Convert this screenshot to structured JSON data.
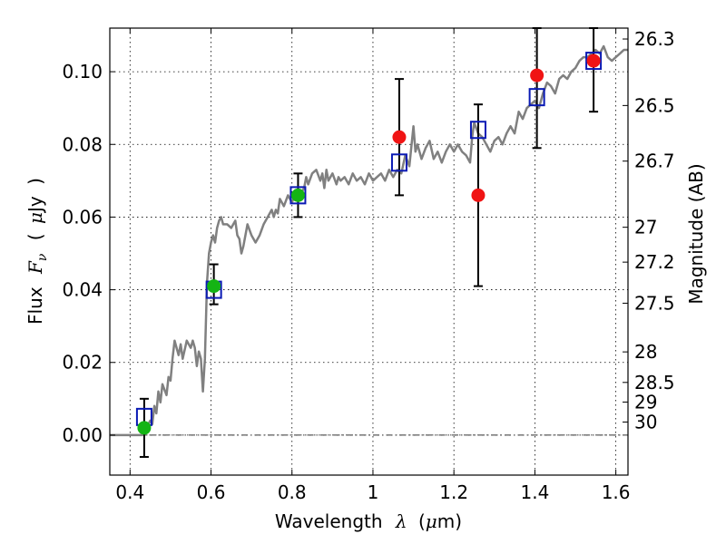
{
  "chart_data": {
    "type": "scatter",
    "xlabel": "Wavelength",
    "xlabel_symbol": "λ",
    "xlabel_unit_open": "(",
    "xlabel_unit_mu": "μ",
    "xlabel_unit_rest": "m)",
    "ylabel": "Flux",
    "ylabel_symbol_F": "F",
    "ylabel_symbol_sub": "ν",
    "ylabel_open": "(",
    "ylabel_mu": "μ",
    "ylabel_unit": "Jy",
    "ylabel_close": ")",
    "y2label": "Magnitude (AB)",
    "xlim": [
      0.35,
      1.63
    ],
    "ylim": [
      -0.011,
      0.112
    ],
    "grid": true,
    "colors": {
      "spectrum": "#808080",
      "model_box": "#0a1ab4",
      "green": "#14b414",
      "red": "#f01414",
      "errorbar": "#000000",
      "zeroline": "#333333"
    },
    "xticks": [
      {
        "v": 0.4,
        "label": "0.4"
      },
      {
        "v": 0.6,
        "label": "0.6"
      },
      {
        "v": 0.8,
        "label": "0.8"
      },
      {
        "v": 1.0,
        "label": "1"
      },
      {
        "v": 1.2,
        "label": "1.2"
      },
      {
        "v": 1.4,
        "label": "1.4"
      },
      {
        "v": 1.6,
        "label": "1.6"
      }
    ],
    "yticks": [
      {
        "v": 0.0,
        "label": "0.00"
      },
      {
        "v": 0.02,
        "label": "0.02"
      },
      {
        "v": 0.04,
        "label": "0.04"
      },
      {
        "v": 0.06,
        "label": "0.06"
      },
      {
        "v": 0.08,
        "label": "0.08"
      },
      {
        "v": 0.1,
        "label": "0.10"
      }
    ],
    "mag_ticks": [
      {
        "label": "26.3",
        "flux": 0.109
      },
      {
        "label": "26.5",
        "flux": 0.0907
      },
      {
        "label": "26.7",
        "flux": 0.0754
      },
      {
        "label": "27",
        "flux": 0.0572
      },
      {
        "label": "27.2",
        "flux": 0.0476
      },
      {
        "label": "27.5",
        "flux": 0.0363
      },
      {
        "label": "28",
        "flux": 0.0229
      },
      {
        "label": "28.5",
        "flux": 0.0145
      },
      {
        "label": "29",
        "flux": 0.0091
      },
      {
        "label": "30",
        "flux": 0.0036
      }
    ],
    "model_boxes": [
      {
        "x": 0.435,
        "y": 0.005
      },
      {
        "x": 0.607,
        "y": 0.04
      },
      {
        "x": 0.815,
        "y": 0.066
      },
      {
        "x": 1.065,
        "y": 0.075
      },
      {
        "x": 1.26,
        "y": 0.084
      },
      {
        "x": 1.405,
        "y": 0.093
      },
      {
        "x": 1.545,
        "y": 0.103
      }
    ],
    "photometry": [
      {
        "x": 0.435,
        "y": 0.002,
        "lo": -0.006,
        "hi": 0.01,
        "band": "green"
      },
      {
        "x": 0.607,
        "y": 0.041,
        "lo": 0.036,
        "hi": 0.047,
        "band": "green"
      },
      {
        "x": 0.815,
        "y": 0.066,
        "lo": 0.06,
        "hi": 0.072,
        "band": "green"
      },
      {
        "x": 1.065,
        "y": 0.082,
        "lo": 0.066,
        "hi": 0.098,
        "band": "red"
      },
      {
        "x": 1.26,
        "y": 0.066,
        "lo": 0.041,
        "hi": 0.091,
        "band": "red"
      },
      {
        "x": 1.405,
        "y": 0.099,
        "lo": 0.079,
        "hi": 0.112,
        "band": "red"
      },
      {
        "x": 1.545,
        "y": 0.103,
        "lo": 0.089,
        "hi": 0.112,
        "band": "red"
      }
    ],
    "spectrum": [
      [
        0.35,
        0.0
      ],
      [
        0.43,
        0.0
      ],
      [
        0.44,
        0.002
      ],
      [
        0.45,
        0.004
      ],
      [
        0.455,
        0.003
      ],
      [
        0.46,
        0.008
      ],
      [
        0.465,
        0.006
      ],
      [
        0.47,
        0.012
      ],
      [
        0.475,
        0.009
      ],
      [
        0.48,
        0.014
      ],
      [
        0.49,
        0.011
      ],
      [
        0.495,
        0.016
      ],
      [
        0.5,
        0.015
      ],
      [
        0.505,
        0.021
      ],
      [
        0.51,
        0.026
      ],
      [
        0.52,
        0.022
      ],
      [
        0.525,
        0.025
      ],
      [
        0.53,
        0.021
      ],
      [
        0.54,
        0.026
      ],
      [
        0.55,
        0.024
      ],
      [
        0.555,
        0.026
      ],
      [
        0.56,
        0.024
      ],
      [
        0.565,
        0.019
      ],
      [
        0.57,
        0.023
      ],
      [
        0.575,
        0.021
      ],
      [
        0.58,
        0.012
      ],
      [
        0.585,
        0.021
      ],
      [
        0.59,
        0.042
      ],
      [
        0.595,
        0.05
      ],
      [
        0.6,
        0.053
      ],
      [
        0.605,
        0.055
      ],
      [
        0.61,
        0.053
      ],
      [
        0.615,
        0.057
      ],
      [
        0.62,
        0.059
      ],
      [
        0.625,
        0.06
      ],
      [
        0.63,
        0.058
      ],
      [
        0.64,
        0.058
      ],
      [
        0.65,
        0.057
      ],
      [
        0.66,
        0.059
      ],
      [
        0.665,
        0.055
      ],
      [
        0.67,
        0.054
      ],
      [
        0.675,
        0.05
      ],
      [
        0.68,
        0.052
      ],
      [
        0.69,
        0.058
      ],
      [
        0.7,
        0.055
      ],
      [
        0.71,
        0.053
      ],
      [
        0.72,
        0.055
      ],
      [
        0.73,
        0.058
      ],
      [
        0.74,
        0.06
      ],
      [
        0.75,
        0.062
      ],
      [
        0.755,
        0.06
      ],
      [
        0.76,
        0.062
      ],
      [
        0.765,
        0.061
      ],
      [
        0.77,
        0.065
      ],
      [
        0.78,
        0.063
      ],
      [
        0.79,
        0.066
      ],
      [
        0.8,
        0.064
      ],
      [
        0.81,
        0.067
      ],
      [
        0.82,
        0.066
      ],
      [
        0.83,
        0.068
      ],
      [
        0.835,
        0.071
      ],
      [
        0.84,
        0.069
      ],
      [
        0.85,
        0.072
      ],
      [
        0.86,
        0.073
      ],
      [
        0.87,
        0.07
      ],
      [
        0.875,
        0.072
      ],
      [
        0.88,
        0.068
      ],
      [
        0.885,
        0.073
      ],
      [
        0.89,
        0.07
      ],
      [
        0.9,
        0.072
      ],
      [
        0.91,
        0.069
      ],
      [
        0.915,
        0.071
      ],
      [
        0.92,
        0.07
      ],
      [
        0.93,
        0.071
      ],
      [
        0.94,
        0.069
      ],
      [
        0.95,
        0.072
      ],
      [
        0.96,
        0.07
      ],
      [
        0.97,
        0.071
      ],
      [
        0.98,
        0.069
      ],
      [
        0.99,
        0.072
      ],
      [
        1.0,
        0.07
      ],
      [
        1.01,
        0.071
      ],
      [
        1.02,
        0.072
      ],
      [
        1.03,
        0.07
      ],
      [
        1.04,
        0.073
      ],
      [
        1.05,
        0.071
      ],
      [
        1.06,
        0.073
      ],
      [
        1.07,
        0.072
      ],
      [
        1.08,
        0.077
      ],
      [
        1.09,
        0.074
      ],
      [
        1.1,
        0.085
      ],
      [
        1.105,
        0.078
      ],
      [
        1.11,
        0.08
      ],
      [
        1.12,
        0.076
      ],
      [
        1.13,
        0.079
      ],
      [
        1.14,
        0.081
      ],
      [
        1.15,
        0.076
      ],
      [
        1.16,
        0.078
      ],
      [
        1.17,
        0.075
      ],
      [
        1.18,
        0.078
      ],
      [
        1.19,
        0.08
      ],
      [
        1.2,
        0.078
      ],
      [
        1.21,
        0.08
      ],
      [
        1.22,
        0.078
      ],
      [
        1.23,
        0.077
      ],
      [
        1.24,
        0.075
      ],
      [
        1.245,
        0.082
      ],
      [
        1.25,
        0.086
      ],
      [
        1.26,
        0.083
      ],
      [
        1.27,
        0.082
      ],
      [
        1.28,
        0.08
      ],
      [
        1.29,
        0.078
      ],
      [
        1.3,
        0.081
      ],
      [
        1.31,
        0.082
      ],
      [
        1.32,
        0.08
      ],
      [
        1.33,
        0.083
      ],
      [
        1.34,
        0.085
      ],
      [
        1.35,
        0.083
      ],
      [
        1.36,
        0.089
      ],
      [
        1.37,
        0.087
      ],
      [
        1.38,
        0.09
      ],
      [
        1.39,
        0.091
      ],
      [
        1.4,
        0.092
      ],
      [
        1.41,
        0.09
      ],
      [
        1.42,
        0.094
      ],
      [
        1.43,
        0.097
      ],
      [
        1.44,
        0.096
      ],
      [
        1.45,
        0.094
      ],
      [
        1.46,
        0.098
      ],
      [
        1.47,
        0.099
      ],
      [
        1.48,
        0.098
      ],
      [
        1.49,
        0.1
      ],
      [
        1.5,
        0.101
      ],
      [
        1.51,
        0.103
      ],
      [
        1.52,
        0.104
      ],
      [
        1.53,
        0.104
      ],
      [
        1.54,
        0.105
      ],
      [
        1.55,
        0.106
      ],
      [
        1.56,
        0.105
      ],
      [
        1.57,
        0.107
      ],
      [
        1.58,
        0.104
      ],
      [
        1.59,
        0.103
      ],
      [
        1.6,
        0.104
      ],
      [
        1.61,
        0.105
      ],
      [
        1.62,
        0.106
      ],
      [
        1.63,
        0.106
      ]
    ]
  }
}
